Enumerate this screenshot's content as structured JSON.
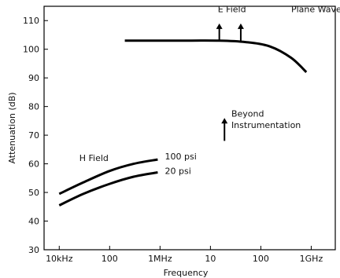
{
  "chart_data": {
    "type": "line",
    "xlabel": "Frequency",
    "ylabel": "Attenuation (dB)",
    "ylim": [
      30,
      115
    ],
    "yticks": [
      30,
      40,
      50,
      60,
      70,
      80,
      90,
      100,
      110
    ],
    "xscale": "log",
    "xlim_hz": [
      5000,
      3000000000
    ],
    "xticks": [
      {
        "label": "10kHz",
        "hz": 10000
      },
      {
        "label": "100",
        "hz": 100000
      },
      {
        "label": "1MHz",
        "hz": 1000000
      },
      {
        "label": "10",
        "hz": 10000000
      },
      {
        "label": "100",
        "hz": 100000000
      },
      {
        "label": "1GHz",
        "hz": 1000000000
      }
    ],
    "grid": false,
    "series": [
      {
        "name": "E Field",
        "x_hz": [
          200000,
          2000000,
          15000000,
          50000000,
          150000000,
          400000000,
          800000000
        ],
        "y": [
          103,
          103,
          103,
          102.5,
          101,
          97,
          92
        ]
      },
      {
        "name": "100 psi",
        "x_hz": [
          10000,
          30000,
          100000,
          300000,
          900000
        ],
        "y": [
          49.5,
          53.5,
          57.5,
          60,
          61.5
        ]
      },
      {
        "name": "20 psi",
        "x_hz": [
          10000,
          30000,
          100000,
          300000,
          900000
        ],
        "y": [
          45.5,
          49.5,
          53,
          55.5,
          57
        ]
      }
    ],
    "annotations": [
      {
        "text": "E Field",
        "x_hz": 14000000,
        "y": 113
      },
      {
        "text": "Plane Wave",
        "x_hz": 400000000,
        "y": 113
      },
      {
        "text": "100 psi",
        "x_hz": 1250000,
        "y": 61.5
      },
      {
        "text": "20 psi",
        "x_hz": 1250000,
        "y": 56.5
      },
      {
        "text": "H Field",
        "x_hz": 25000,
        "y": 61
      },
      {
        "text": "Beyond",
        "x_hz": 26000000,
        "y": 76.5
      },
      {
        "text": "Instrumentation",
        "x_hz": 26000000,
        "y": 72.5
      }
    ],
    "arrows": [
      {
        "x_hz": 15000000,
        "y_from": 103,
        "y_to": 109
      },
      {
        "x_hz": 40000000,
        "y_from": 103,
        "y_to": 109
      },
      {
        "x_hz": 19000000,
        "y_from": 68,
        "y_to": 76
      }
    ]
  }
}
